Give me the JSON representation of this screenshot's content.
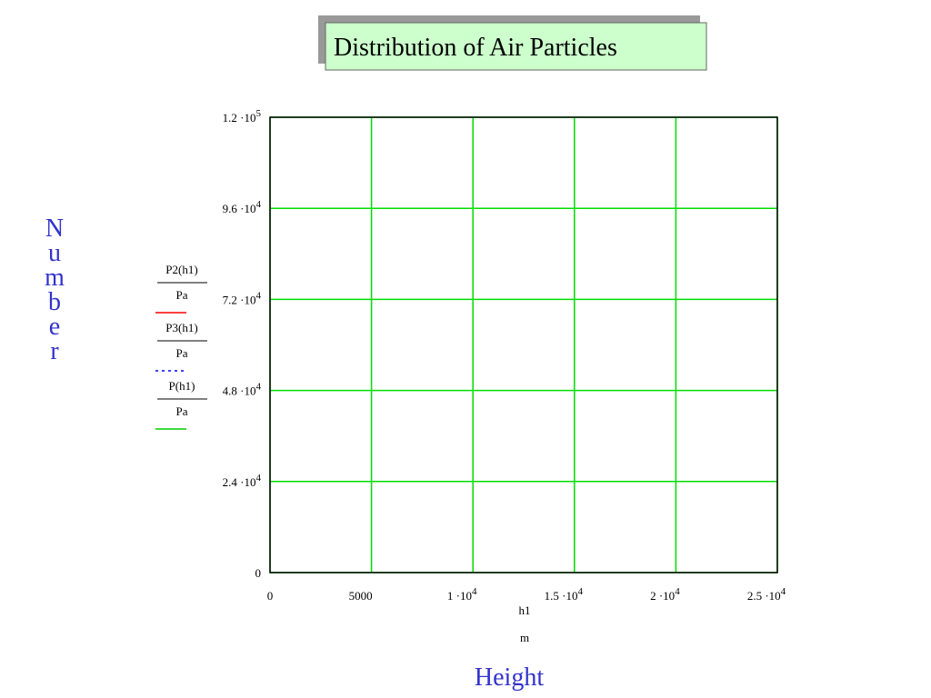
{
  "chart_data": {
    "type": "line",
    "title": "Distribution of Air Particles",
    "x_label": "Height",
    "x_expr": "h1",
    "x_unit": "m",
    "y_label": "Number",
    "series": [
      {
        "name": "P2(h1)",
        "unit": "Pa",
        "color": "#ff0000",
        "dash": "solid",
        "values": []
      },
      {
        "name": "P3(h1)",
        "unit": "Pa",
        "color": "#0000ff",
        "dash": "dotted",
        "values": []
      },
      {
        "name": "P(h1)",
        "unit": "Pa",
        "color": "#00cc00",
        "dash": "solid",
        "values": []
      }
    ],
    "xlim": [
      0,
      25000
    ],
    "xticks": [
      0,
      5000,
      {
        "value": 10000,
        "label": "1 ·10",
        "exponent": "4"
      },
      {
        "value": 15000,
        "label": "1.5 ·10",
        "exponent": "4"
      },
      {
        "value": 20000,
        "label": "2 ·10",
        "exponent": "4"
      },
      {
        "value": 25000,
        "label": "2.5 ·10",
        "exponent": "4"
      }
    ],
    "ylim": [
      0,
      120000
    ],
    "yticks": [
      0,
      {
        "value": 24000,
        "label": "2.4 ·10",
        "exponent": "4"
      },
      {
        "value": 48000,
        "label": "4.8 ·10",
        "exponent": "4"
      },
      {
        "value": 72000,
        "label": "7.2 ·10",
        "exponent": "4"
      },
      {
        "value": 96000,
        "label": "9.6 ·10",
        "exponent": "4"
      },
      {
        "value": 120000,
        "label": "1.2 ·10",
        "exponent": "5"
      }
    ],
    "grid": true,
    "grid_color": "#00dd00"
  }
}
